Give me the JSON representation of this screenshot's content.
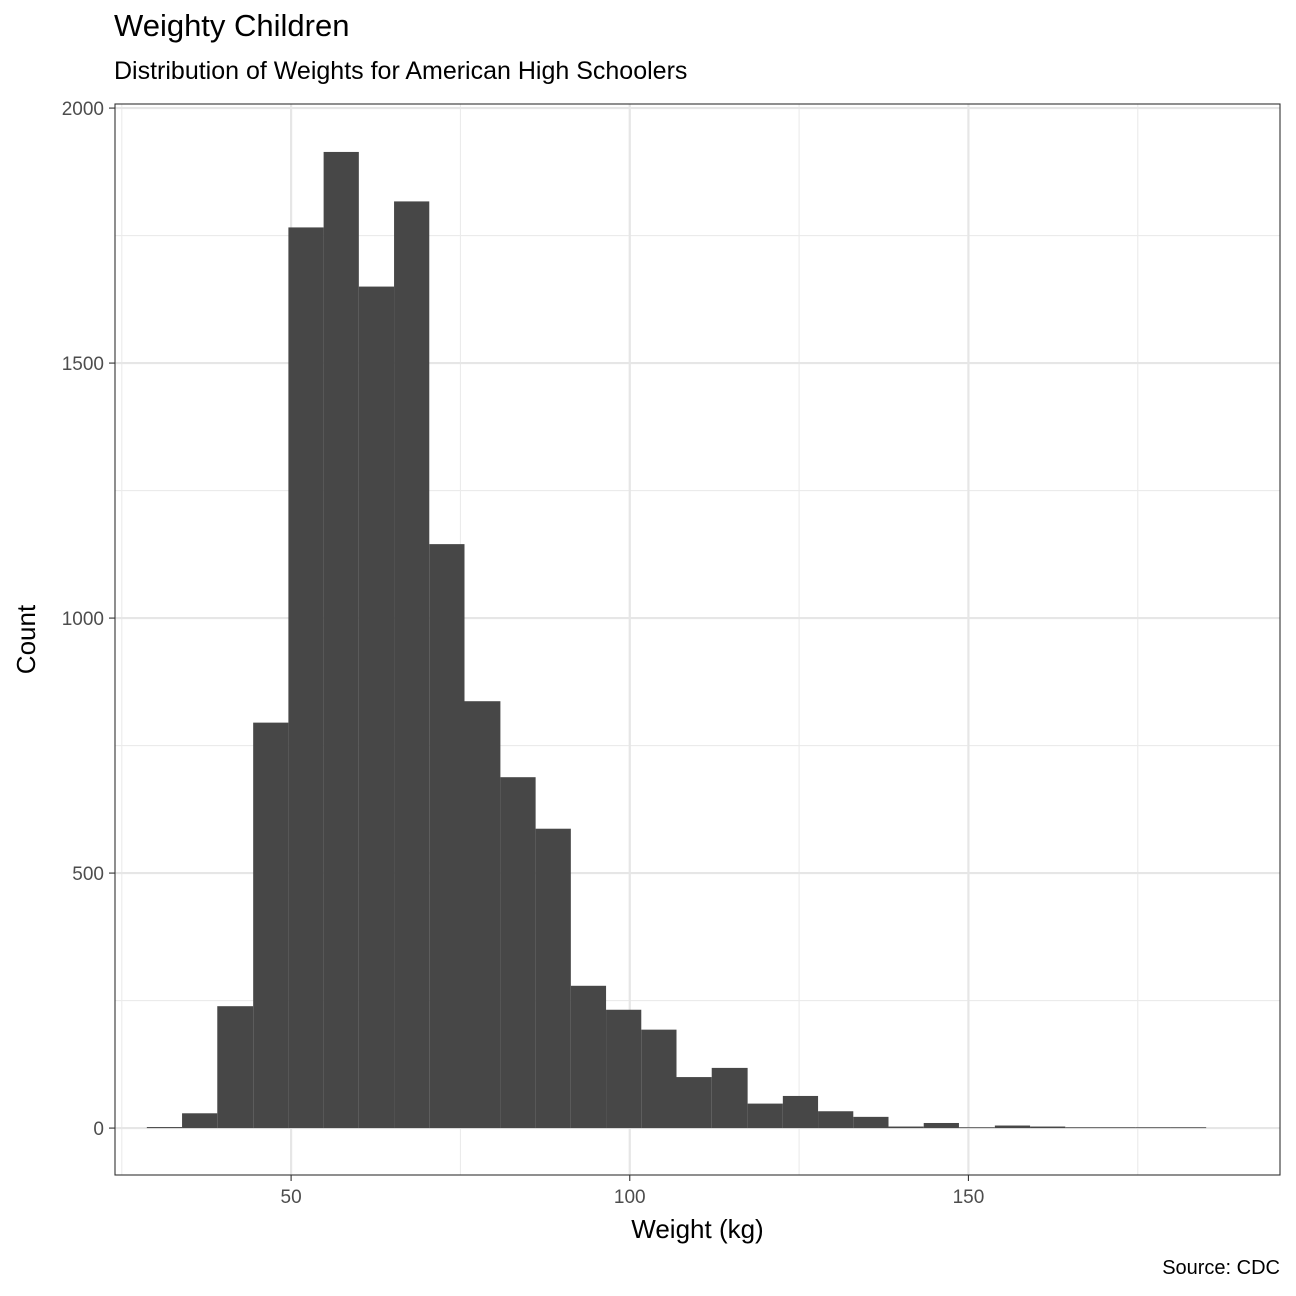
{
  "chart_data": {
    "type": "histogram",
    "title": "Weighty Children",
    "subtitle": "Distribution of Weights for American High Schoolers",
    "caption": "Source: CDC",
    "xlabel": "Weight (kg)",
    "ylabel": "Count",
    "xlim": [
      24,
      196
    ],
    "ylim": [
      -92,
      2008
    ],
    "x_ticks": [
      50,
      100,
      150
    ],
    "x_minor_ticks": [
      25,
      75,
      125,
      175
    ],
    "y_ticks": [
      0,
      500,
      1000,
      1500,
      2000
    ],
    "y_minor_ticks": [
      250,
      750,
      1250,
      1750
    ],
    "grid": true,
    "bar_color": "#474747",
    "bins": [
      {
        "x0": 28.7,
        "x1": 33.9,
        "count": 2
      },
      {
        "x0": 33.9,
        "x1": 39.1,
        "count": 29
      },
      {
        "x0": 39.1,
        "x1": 44.4,
        "count": 239
      },
      {
        "x0": 44.4,
        "x1": 49.6,
        "count": 795
      },
      {
        "x0": 49.6,
        "x1": 54.8,
        "count": 1766
      },
      {
        "x0": 54.8,
        "x1": 60.0,
        "count": 1914
      },
      {
        "x0": 60.0,
        "x1": 65.2,
        "count": 1650
      },
      {
        "x0": 65.2,
        "x1": 70.4,
        "count": 1817
      },
      {
        "x0": 70.4,
        "x1": 75.6,
        "count": 1145
      },
      {
        "x0": 75.6,
        "x1": 80.9,
        "count": 837
      },
      {
        "x0": 80.9,
        "x1": 86.1,
        "count": 688
      },
      {
        "x0": 86.1,
        "x1": 91.3,
        "count": 587
      },
      {
        "x0": 91.3,
        "x1": 96.5,
        "count": 279
      },
      {
        "x0": 96.5,
        "x1": 101.7,
        "count": 232
      },
      {
        "x0": 101.7,
        "x1": 106.9,
        "count": 193
      },
      {
        "x0": 106.9,
        "x1": 112.1,
        "count": 100
      },
      {
        "x0": 112.1,
        "x1": 117.4,
        "count": 118
      },
      {
        "x0": 117.4,
        "x1": 122.6,
        "count": 48
      },
      {
        "x0": 122.6,
        "x1": 127.8,
        "count": 63
      },
      {
        "x0": 127.8,
        "x1": 133.0,
        "count": 33
      },
      {
        "x0": 133.0,
        "x1": 138.2,
        "count": 22
      },
      {
        "x0": 138.2,
        "x1": 143.4,
        "count": 3
      },
      {
        "x0": 143.4,
        "x1": 148.6,
        "count": 10
      },
      {
        "x0": 148.6,
        "x1": 153.9,
        "count": 1
      },
      {
        "x0": 153.9,
        "x1": 159.1,
        "count": 5
      },
      {
        "x0": 159.1,
        "x1": 164.3,
        "count": 3
      },
      {
        "x0": 164.3,
        "x1": 169.5,
        "count": 0
      },
      {
        "x0": 169.5,
        "x1": 174.7,
        "count": 0
      },
      {
        "x0": 174.7,
        "x1": 179.9,
        "count": 0
      },
      {
        "x0": 179.9,
        "x1": 185.1,
        "count": 1
      }
    ]
  }
}
